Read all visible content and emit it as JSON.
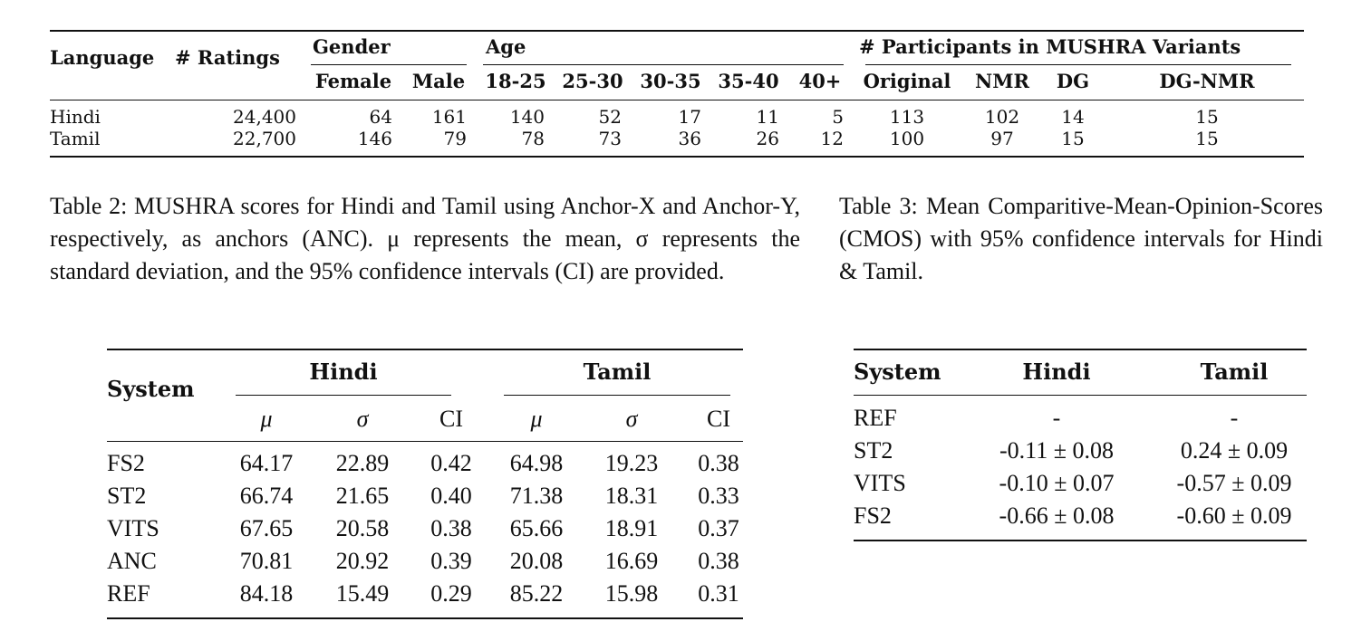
{
  "table1": {
    "headers": {
      "language": "Language",
      "ratings": "# Ratings",
      "gender": "Gender",
      "age": "Age",
      "participants": "# Participants in MUSHRA Variants",
      "sub": [
        "Female",
        "Male",
        "18-25",
        "25-30",
        "30-35",
        "35-40",
        "40+",
        "Original",
        "NMR",
        "DG",
        "DG-NMR"
      ]
    },
    "rows": [
      [
        "Hindi",
        "24,400",
        "64",
        "161",
        "140",
        "52",
        "17",
        "11",
        "5",
        "113",
        "102",
        "14",
        "15"
      ],
      [
        "Tamil",
        "22,700",
        "146",
        "79",
        "78",
        "73",
        "36",
        "26",
        "12",
        "100",
        "97",
        "15",
        "15"
      ]
    ]
  },
  "caption2": "Table 2: MUSHRA scores for Hindi and Tamil using Anchor-X and Anchor-Y, respectively, as anchors (ANC). μ represents the mean, σ represents the standard deviation, and the 95% confidence intervals (CI) are provided.",
  "caption3": "Table 3: Mean Comparitive-Mean-Opinion-Scores (CMOS) with 95% confidence intervals for Hindi & Tamil.",
  "table2": {
    "system": "System",
    "groups": [
      "Hindi",
      "Tamil"
    ],
    "sub": [
      "μ",
      "σ",
      "CI",
      "μ",
      "σ",
      "CI"
    ],
    "rows": [
      [
        "FS2",
        "64.17",
        "22.89",
        "0.42",
        "64.98",
        "19.23",
        "0.38"
      ],
      [
        "ST2",
        "66.74",
        "21.65",
        "0.40",
        "71.38",
        "18.31",
        "0.33"
      ],
      [
        "VITS",
        "67.65",
        "20.58",
        "0.38",
        "65.66",
        "18.91",
        "0.37"
      ],
      [
        "ANC",
        "70.81",
        "20.92",
        "0.39",
        "20.08",
        "16.69",
        "0.38"
      ],
      [
        "REF",
        "84.18",
        "15.49",
        "0.29",
        "85.22",
        "15.98",
        "0.31"
      ]
    ]
  },
  "table3": {
    "headers": [
      "System",
      "Hindi",
      "Tamil"
    ],
    "rows": [
      [
        "REF",
        "-",
        "-"
      ],
      [
        "ST2",
        "-0.11 ± 0.08",
        "0.24 ± 0.09"
      ],
      [
        "VITS",
        "-0.10 ± 0.07",
        "-0.57 ± 0.09"
      ],
      [
        "FS2",
        "-0.66 ± 0.08",
        "-0.60 ± 0.09"
      ]
    ]
  }
}
